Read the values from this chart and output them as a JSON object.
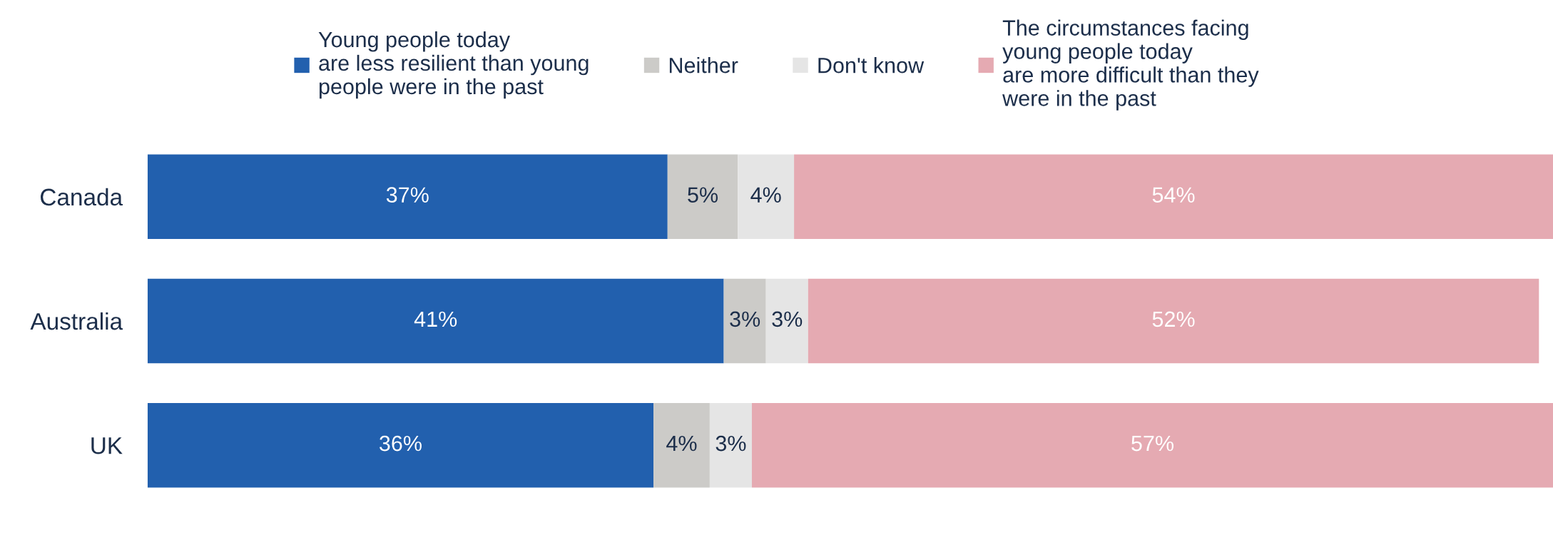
{
  "chart_data": {
    "type": "bar",
    "orientation": "horizontal",
    "stacked": true,
    "grid": false,
    "legend": "top",
    "tick_labels": "y",
    "categories": [
      "Canada",
      "Australia",
      "UK"
    ],
    "series": [
      {
        "name": "Young people today\nare less resilient than young\npeople were in the past",
        "color": "#2260ae",
        "values": [
          37,
          41,
          36
        ],
        "value_labels": [
          "37%",
          "41%",
          "36%"
        ]
      },
      {
        "name": "Neither",
        "color": "#cccbc8",
        "values": [
          5,
          3,
          4
        ],
        "value_labels": [
          "5%",
          "3%",
          "4%"
        ]
      },
      {
        "name": "Don't know",
        "color": "#e5e5e5",
        "values": [
          4,
          3,
          3
        ],
        "value_labels": [
          "4%",
          "3%",
          "3%"
        ]
      },
      {
        "name": "The circumstances facing\nyoung people today\nare more difficult than they\nwere in the past",
        "color": "#e5aab2",
        "values": [
          54,
          52,
          57
        ],
        "value_labels": [
          "54%",
          "52%",
          "57%"
        ]
      }
    ]
  }
}
